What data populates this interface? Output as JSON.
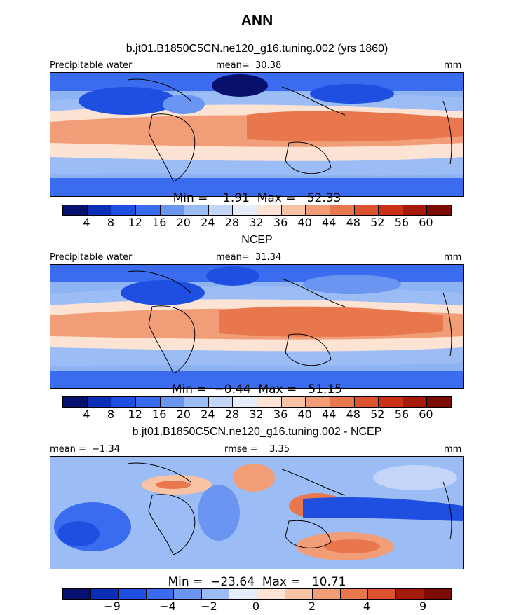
{
  "title": "ANN",
  "panels": [
    {
      "id": "model",
      "subtitle": "b.jt01.B1850C5CN.ne120_g16.tuning.002 (yrs 1860)",
      "left_label": "Precipitable water",
      "center_label": "mean=  30.38",
      "right_label": "mm",
      "stats_label": "Min =    1.91  Max =   52.33",
      "colorbar_ticks": [
        "4",
        "8",
        "12",
        "16",
        "20",
        "24",
        "28",
        "32",
        "36",
        "40",
        "44",
        "48",
        "52",
        "56",
        "60"
      ]
    },
    {
      "id": "ncep",
      "subtitle": "NCEP",
      "left_label": "Precipitable water",
      "center_label": "mean=  31.34",
      "right_label": "mm",
      "stats_label": "Min =  −0.44  Max =   51.15",
      "colorbar_ticks": [
        "4",
        "8",
        "12",
        "16",
        "20",
        "24",
        "28",
        "32",
        "36",
        "40",
        "44",
        "48",
        "52",
        "56",
        "60"
      ]
    },
    {
      "id": "difference",
      "subtitle": "b.jt01.B1850C5CN.ne120_g16.tuning.002 - NCEP",
      "left_label": "mean =  −1.34",
      "center_label": "rmse =    3.35",
      "right_label": "mm",
      "stats_label": "Min =  −23.64  Max =   10.71",
      "colorbar_ticks": [
        "−9",
        "−4",
        "−2",
        "0",
        "2",
        "4",
        "9"
      ]
    }
  ],
  "colors": {
    "colorbar_16": [
      "#08106e",
      "#0a2eb5",
      "#1e4fe0",
      "#3b6cf0",
      "#6a95f0",
      "#9cbcf5",
      "#c3d6f8",
      "#e6eefc",
      "#fde3d3",
      "#f8c2a4",
      "#f19e78",
      "#e9774e",
      "#dd5230",
      "#c93015",
      "#a31a0b",
      "#7a0c04"
    ],
    "colorbar_14": [
      "#08106e",
      "#0a2eb5",
      "#1e4fe0",
      "#3b6cf0",
      "#6a95f0",
      "#9cbcf5",
      "#e6eefc",
      "#fde3d3",
      "#f8c2a4",
      "#f19e78",
      "#e9774e",
      "#dd5230",
      "#a31a0b",
      "#7a0c04"
    ]
  }
}
